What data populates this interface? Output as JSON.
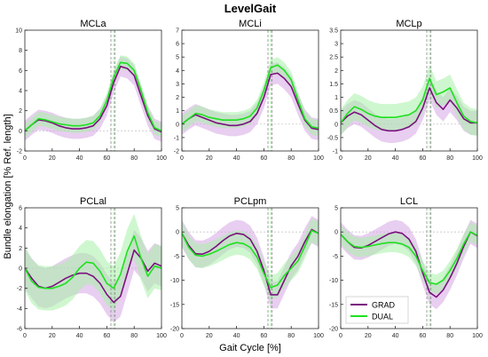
{
  "figure": {
    "title": "LevelGait",
    "ylabel": "Bundle elongation [% Ref. length]",
    "xlabel": "Gait Cycle [%]",
    "legend": {
      "placement": "inside bottom-left of LCL panel",
      "entries": [
        {
          "label": "GRAD",
          "color": "#7b0f7e"
        },
        {
          "label": "DUAL",
          "color": "#1fe01f"
        }
      ]
    },
    "colors": {
      "grad_line": "#7b0f7e",
      "grad_band": "#d6a6e3",
      "dual_line": "#1fe01f",
      "dual_band": "#a8f0a8",
      "overlap_band": "#9e9e9e",
      "vline_grad": "#8a8a8a",
      "vline_dual": "#7fdc7f",
      "zero_line": "#c8c8c8"
    }
  },
  "chart_data": [
    {
      "type": "line",
      "title": "MCLa",
      "xlim": [
        0,
        100
      ],
      "ylim": [
        -2,
        10
      ],
      "xticks": [
        0,
        20,
        40,
        60,
        80,
        100
      ],
      "yticks": [
        -2,
        0,
        2,
        4,
        6,
        8,
        10
      ],
      "grid": false,
      "vlines": [
        63,
        65,
        66
      ],
      "x": [
        0,
        5,
        10,
        15,
        20,
        25,
        30,
        35,
        40,
        45,
        50,
        55,
        60,
        65,
        70,
        75,
        80,
        85,
        90,
        95,
        100
      ],
      "series": [
        {
          "name": "GRAD",
          "values": [
            0,
            0.6,
            1.1,
            1.0,
            0.8,
            0.5,
            0.3,
            0.2,
            0.2,
            0.3,
            0.5,
            1.2,
            2.5,
            4.8,
            6.4,
            6.2,
            5.5,
            3.5,
            1.5,
            0.2,
            -0.1
          ],
          "band": 1.0
        },
        {
          "name": "DUAL",
          "values": [
            0,
            0.6,
            1.2,
            1.1,
            0.9,
            0.7,
            0.6,
            0.5,
            0.5,
            0.6,
            0.8,
            1.5,
            3.0,
            5.3,
            6.8,
            6.7,
            6.0,
            4.0,
            1.8,
            0.3,
            0.0
          ],
          "band": 0.7
        }
      ]
    },
    {
      "type": "line",
      "title": "MCLi",
      "xlim": [
        0,
        100
      ],
      "ylim": [
        -2,
        7
      ],
      "xticks": [
        0,
        20,
        40,
        60,
        80,
        100
      ],
      "yticks": [
        -2,
        -1,
        0,
        1,
        2,
        3,
        4,
        5,
        6,
        7
      ],
      "grid": false,
      "vlines": [
        63,
        65,
        66
      ],
      "x": [
        0,
        5,
        10,
        15,
        20,
        25,
        30,
        35,
        40,
        45,
        50,
        55,
        60,
        65,
        70,
        75,
        80,
        85,
        90,
        95,
        100
      ],
      "series": [
        {
          "name": "GRAD",
          "values": [
            0,
            0.4,
            0.7,
            0.5,
            0.3,
            0.1,
            0.0,
            -0.1,
            -0.1,
            0.0,
            0.2,
            0.8,
            2.0,
            3.7,
            3.8,
            3.4,
            2.8,
            1.5,
            0.3,
            -0.3,
            -0.4
          ],
          "band": 0.8
        },
        {
          "name": "DUAL",
          "values": [
            0,
            0.4,
            0.8,
            0.7,
            0.5,
            0.4,
            0.3,
            0.3,
            0.3,
            0.4,
            0.6,
            1.2,
            2.5,
            4.2,
            4.4,
            4.0,
            3.3,
            1.8,
            0.4,
            -0.2,
            -0.3
          ],
          "band": 0.6
        }
      ]
    },
    {
      "type": "line",
      "title": "MCLp",
      "xlim": [
        0,
        100
      ],
      "ylim": [
        -1,
        3.5
      ],
      "xticks": [
        0,
        20,
        40,
        60,
        80,
        100
      ],
      "yticks": [
        -1,
        -0.5,
        0,
        0.5,
        1,
        1.5,
        2,
        2.5,
        3,
        3.5
      ],
      "grid": false,
      "vlines": [
        63,
        65,
        66
      ],
      "x": [
        0,
        5,
        10,
        15,
        20,
        25,
        30,
        35,
        40,
        45,
        50,
        55,
        60,
        65,
        70,
        75,
        80,
        85,
        90,
        95,
        100
      ],
      "series": [
        {
          "name": "GRAD",
          "values": [
            0.05,
            0.3,
            0.45,
            0.35,
            0.15,
            -0.05,
            -0.2,
            -0.25,
            -0.25,
            -0.2,
            -0.1,
            0.1,
            0.6,
            1.35,
            0.8,
            0.55,
            0.9,
            0.6,
            0.2,
            0.05,
            0.05
          ],
          "band": 0.45
        },
        {
          "name": "DUAL",
          "values": [
            0.05,
            0.4,
            0.65,
            0.55,
            0.4,
            0.3,
            0.25,
            0.25,
            0.25,
            0.3,
            0.35,
            0.5,
            0.9,
            1.7,
            1.1,
            1.2,
            1.35,
            0.8,
            0.3,
            0.1,
            0.05
          ],
          "band": 0.5
        }
      ]
    },
    {
      "type": "line",
      "title": "PCLal",
      "xlim": [
        0,
        100
      ],
      "ylim": [
        -6,
        6
      ],
      "xticks": [
        0,
        20,
        40,
        60,
        80,
        100
      ],
      "yticks": [
        -6,
        -4,
        -2,
        0,
        2,
        4,
        6
      ],
      "grid": false,
      "vlines": [
        63,
        65,
        66
      ],
      "x": [
        0,
        5,
        10,
        15,
        20,
        25,
        30,
        35,
        40,
        45,
        50,
        55,
        60,
        65,
        70,
        75,
        80,
        85,
        90,
        95,
        100
      ],
      "series": [
        {
          "name": "GRAD",
          "values": [
            0,
            -1.0,
            -1.8,
            -2.0,
            -1.8,
            -1.4,
            -1.0,
            -0.7,
            -0.5,
            -0.5,
            -0.8,
            -1.5,
            -2.6,
            -3.4,
            -2.8,
            -0.5,
            1.8,
            1.0,
            -0.3,
            0.5,
            0.2
          ],
          "band": 2.0
        },
        {
          "name": "DUAL",
          "values": [
            0,
            -1.3,
            -1.9,
            -2.0,
            -2.0,
            -1.8,
            -1.5,
            -0.9,
            0.0,
            0.6,
            0.5,
            -0.3,
            -1.5,
            -2.0,
            -0.6,
            1.7,
            3.2,
            1.0,
            -0.8,
            0.2,
            0.0
          ],
          "band": 2.2
        }
      ]
    },
    {
      "type": "line",
      "title": "PCLpm",
      "xlim": [
        0,
        100
      ],
      "ylim": [
        -20,
        5
      ],
      "xticks": [
        0,
        20,
        40,
        60,
        80,
        100
      ],
      "yticks": [
        -20,
        -15,
        -10,
        -5,
        0,
        5
      ],
      "grid": false,
      "vlines": [
        63,
        65,
        66
      ],
      "x": [
        0,
        5,
        10,
        15,
        20,
        25,
        30,
        35,
        40,
        45,
        50,
        55,
        60,
        65,
        70,
        75,
        80,
        85,
        90,
        95,
        100
      ],
      "series": [
        {
          "name": "GRAD",
          "values": [
            -0.3,
            -2.8,
            -4.5,
            -4.6,
            -4.0,
            -3.0,
            -1.8,
            -0.8,
            -0.3,
            -0.5,
            -1.5,
            -4.0,
            -8.0,
            -13.0,
            -13.0,
            -10.0,
            -7.0,
            -5.0,
            -2.0,
            0.5,
            -0.3
          ],
          "band": 2.8
        },
        {
          "name": "DUAL",
          "values": [
            -0.3,
            -3.2,
            -4.8,
            -5.0,
            -4.6,
            -4.0,
            -3.3,
            -2.6,
            -2.2,
            -2.4,
            -3.2,
            -5.2,
            -8.6,
            -11.5,
            -11.0,
            -9.0,
            -7.5,
            -6.0,
            -3.0,
            0.3,
            -0.3
          ],
          "band": 2.5
        }
      ]
    },
    {
      "type": "line",
      "title": "LCL",
      "xlim": [
        0,
        100
      ],
      "ylim": [
        -20,
        5
      ],
      "xticks": [
        0,
        20,
        40,
        60,
        80,
        100
      ],
      "yticks": [
        -20,
        -15,
        -10,
        -5,
        0,
        5
      ],
      "grid": false,
      "vlines": [
        63,
        65,
        66
      ],
      "x": [
        0,
        5,
        10,
        15,
        20,
        25,
        30,
        35,
        40,
        45,
        50,
        55,
        60,
        65,
        70,
        75,
        80,
        85,
        90,
        95,
        100
      ],
      "series": [
        {
          "name": "GRAD",
          "values": [
            -0.5,
            -2.0,
            -3.2,
            -3.3,
            -2.8,
            -2.0,
            -1.2,
            -0.4,
            0.0,
            -0.3,
            -1.5,
            -4.0,
            -8.5,
            -12.5,
            -13.5,
            -12.0,
            -9.5,
            -6.5,
            -3.0,
            0.0,
            -0.8
          ],
          "band": 2.5
        },
        {
          "name": "DUAL",
          "values": [
            -0.5,
            -2.0,
            -3.0,
            -3.2,
            -3.0,
            -2.7,
            -2.4,
            -2.2,
            -2.2,
            -2.5,
            -3.2,
            -5.0,
            -8.0,
            -10.5,
            -10.8,
            -10.0,
            -8.0,
            -5.5,
            -2.5,
            0.0,
            -0.7
          ],
          "band": 2.0
        }
      ]
    }
  ]
}
